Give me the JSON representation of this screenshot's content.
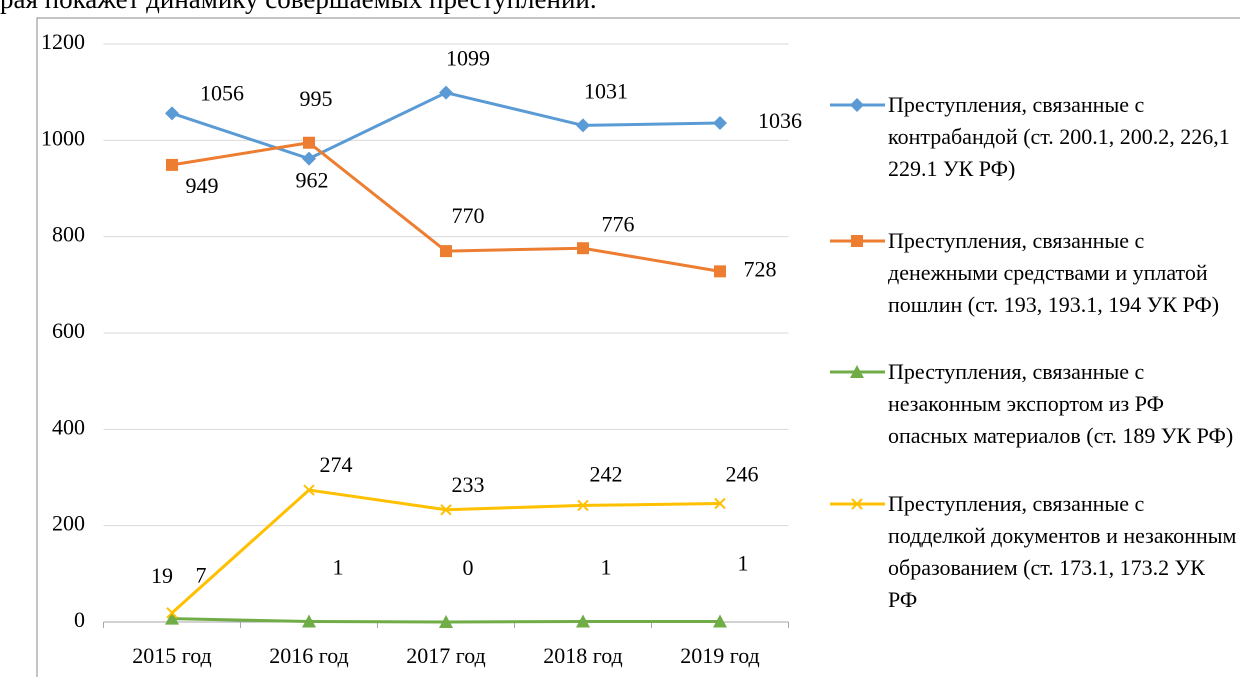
{
  "caption": "рая покажет динамику совершаемых преступлений.",
  "chart_data": {
    "type": "line",
    "categories": [
      "2015 год",
      "2016 год",
      "2017 год",
      "2018 год",
      "2019 год"
    ],
    "ylim": [
      0,
      1200
    ],
    "yticks": [
      0,
      200,
      400,
      600,
      800,
      1000,
      1200
    ],
    "grid": true,
    "legend": "right",
    "series": [
      {
        "name": "Преступления, связанные с контрабандой (ст. 200.1, 200.2, 226,1 229.1 УК РФ)",
        "color": "#5b9bd5",
        "marker": "diamond",
        "values": [
          1056,
          962,
          1099,
          1031,
          1036
        ]
      },
      {
        "name": "Преступления, связанные с денежными средствами и уплатой пошлин (ст. 193, 193.1, 194 УК РФ)",
        "color": "#ed7d31",
        "marker": "square",
        "values": [
          949,
          995,
          770,
          776,
          728
        ]
      },
      {
        "name": "Преступления, связанные с незаконным экспортом из РФ опасных материалов (ст. 189 УК РФ)",
        "color": "#70ad47",
        "marker": "triangle",
        "values": [
          7,
          1,
          0,
          1,
          1
        ]
      },
      {
        "name": "Преступления, связанные с подделкой документов и незаконным образованием (ст. 173.1, 173.2 УК РФ",
        "color": "#ffc000",
        "marker": "x",
        "values": [
          19,
          274,
          233,
          242,
          246
        ]
      }
    ]
  }
}
